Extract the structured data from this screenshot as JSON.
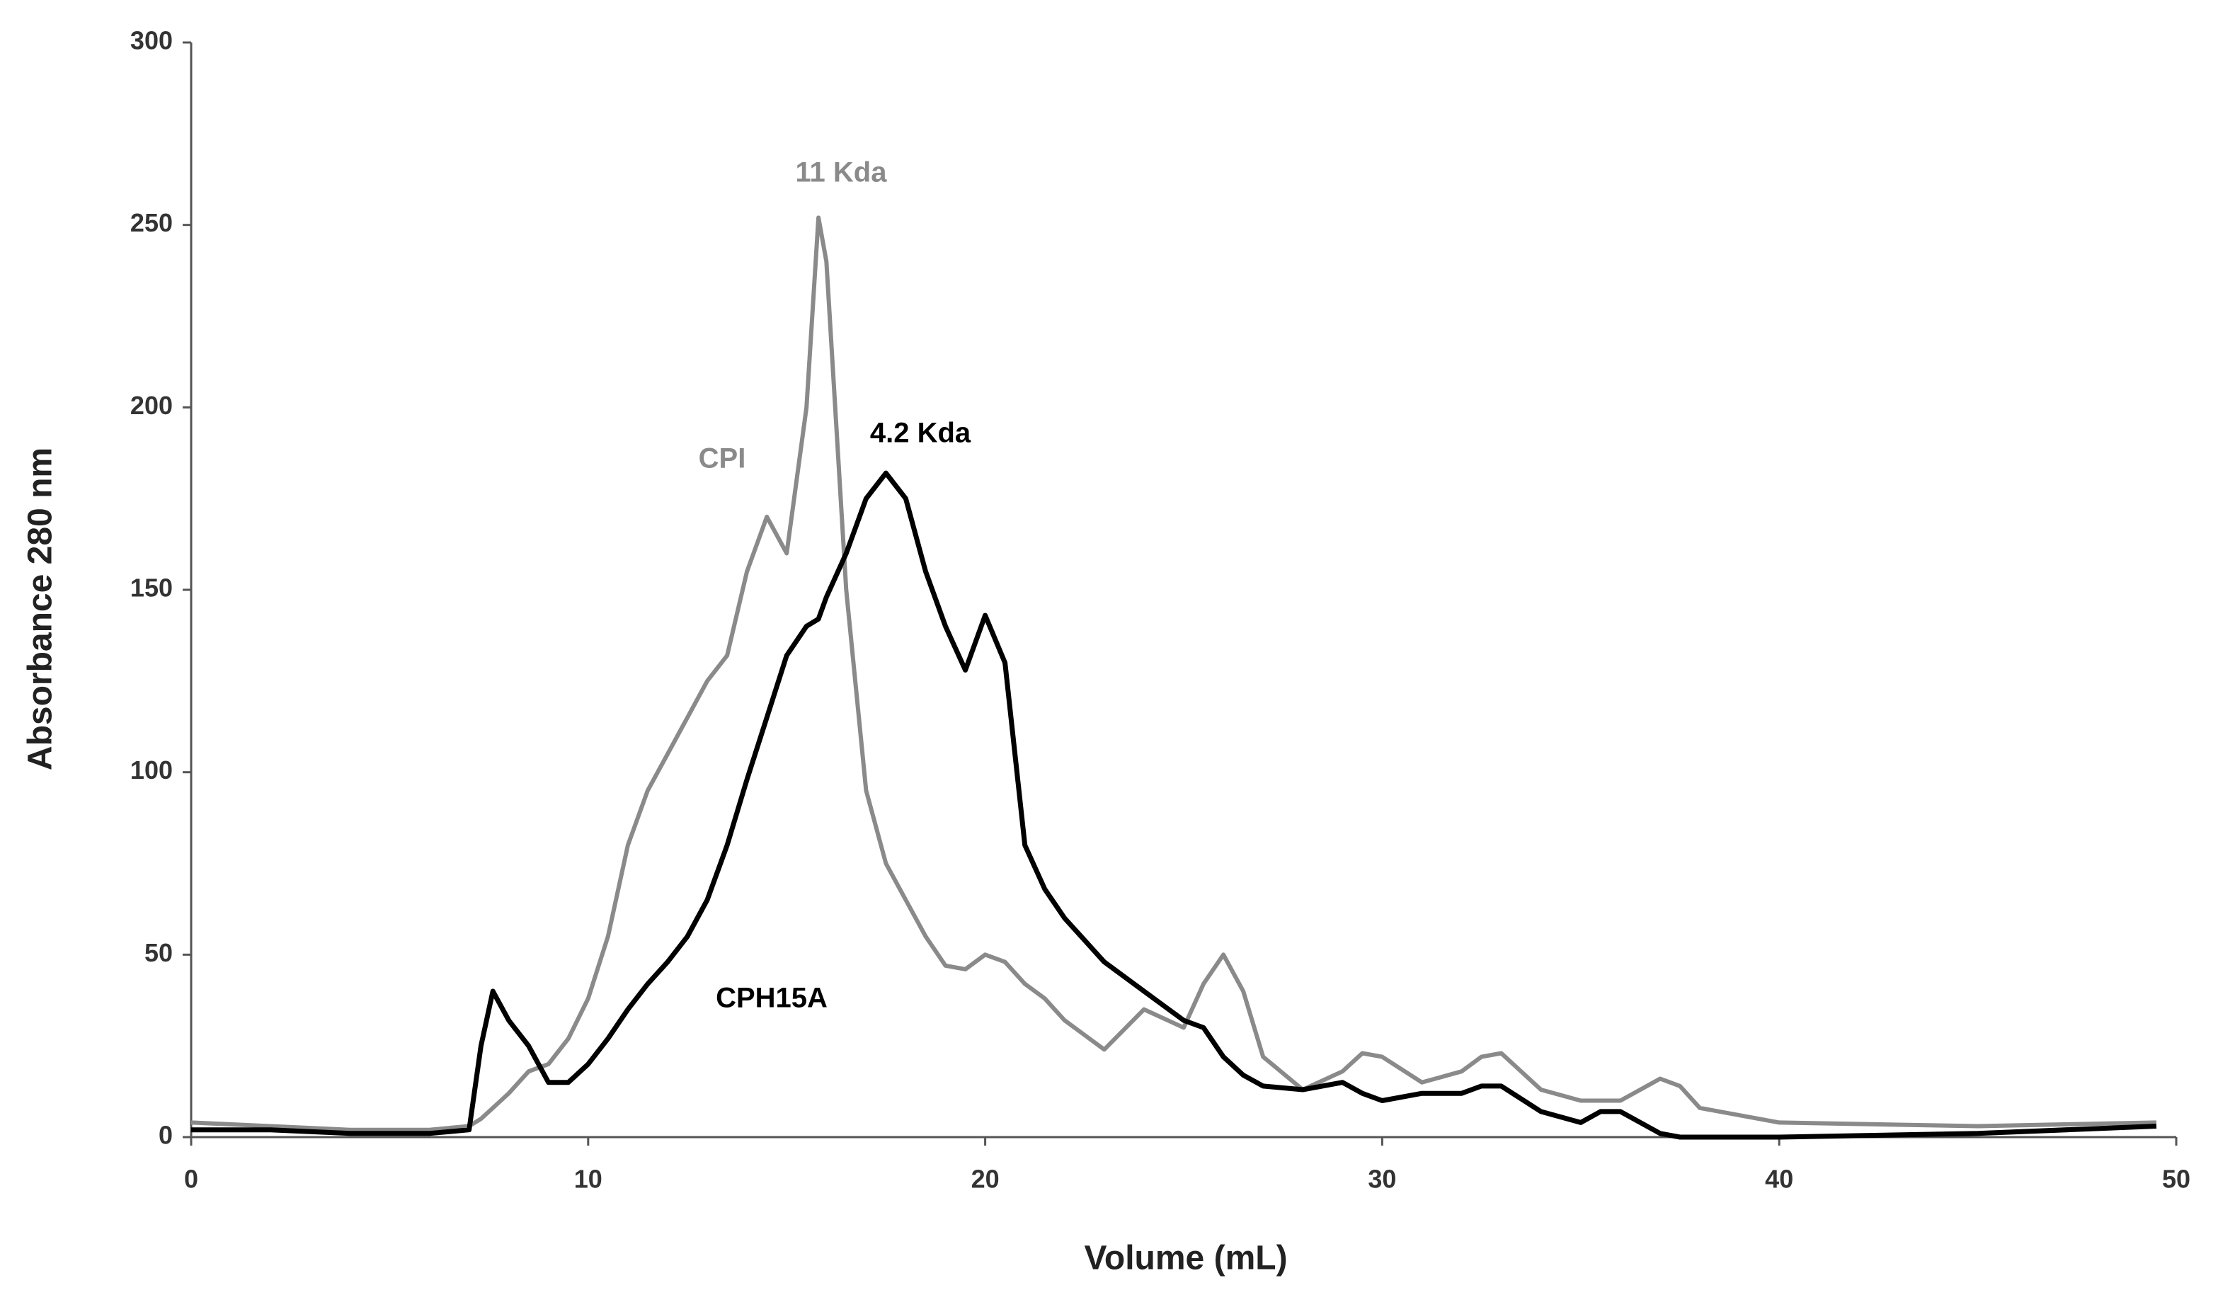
{
  "chart_data": {
    "type": "line",
    "x_label": "Volume (mL)",
    "y_label": "Absorbance 280 nm",
    "x": [
      0,
      2,
      4,
      6,
      7,
      7.3,
      7.6,
      8,
      8.5,
      9,
      9.5,
      10,
      10.5,
      11,
      11.5,
      12,
      12.5,
      13,
      13.5,
      14,
      14.5,
      15,
      15.5,
      15.8,
      16,
      16.5,
      17,
      17.5,
      18,
      18.5,
      19,
      19.5,
      20,
      20.5,
      21,
      21.5,
      22,
      23,
      24,
      25,
      25.5,
      26,
      26.5,
      27,
      28,
      29,
      29.5,
      30,
      31,
      32,
      32.5,
      33,
      34,
      35,
      35.5,
      36,
      37,
      37.5,
      38,
      40,
      45,
      49.5
    ],
    "series": [
      {
        "name": "CPI",
        "color": "#8a8a8a",
        "values": [
          4,
          3,
          2,
          2,
          3,
          5,
          8,
          12,
          18,
          20,
          27,
          38,
          55,
          80,
          95,
          105,
          115,
          125,
          132,
          155,
          170,
          160,
          200,
          252,
          240,
          150,
          95,
          75,
          65,
          55,
          47,
          46,
          50,
          48,
          42,
          38,
          32,
          24,
          35,
          30,
          42,
          50,
          40,
          22,
          13,
          18,
          23,
          22,
          15,
          18,
          22,
          23,
          13,
          10,
          10,
          10,
          16,
          14,
          8,
          4,
          3,
          4
        ]
      },
      {
        "name": "CPH15A",
        "color": "#000000",
        "values": [
          2,
          2,
          1,
          1,
          2,
          25,
          40,
          32,
          25,
          15,
          15,
          20,
          27,
          35,
          42,
          48,
          55,
          65,
          80,
          98,
          115,
          132,
          140,
          142,
          148,
          160,
          175,
          182,
          175,
          155,
          140,
          128,
          143,
          130,
          80,
          68,
          60,
          48,
          40,
          32,
          30,
          22,
          17,
          14,
          13,
          15,
          12,
          10,
          12,
          12,
          14,
          14,
          7,
          4,
          7,
          7,
          1,
          0,
          0,
          0,
          1,
          3
        ]
      }
    ],
    "annotations": [
      {
        "text": "11 Kda",
        "color": "#8a8a8a"
      },
      {
        "text": "4.2 Kda",
        "color": "#000000"
      }
    ],
    "xlim": [
      0,
      50
    ],
    "xticks": [
      0,
      10,
      20,
      30,
      40,
      50
    ],
    "ylim": [
      0,
      300
    ],
    "yticks": [
      0,
      50,
      100,
      150,
      200,
      250,
      300
    ],
    "grid": false
  }
}
